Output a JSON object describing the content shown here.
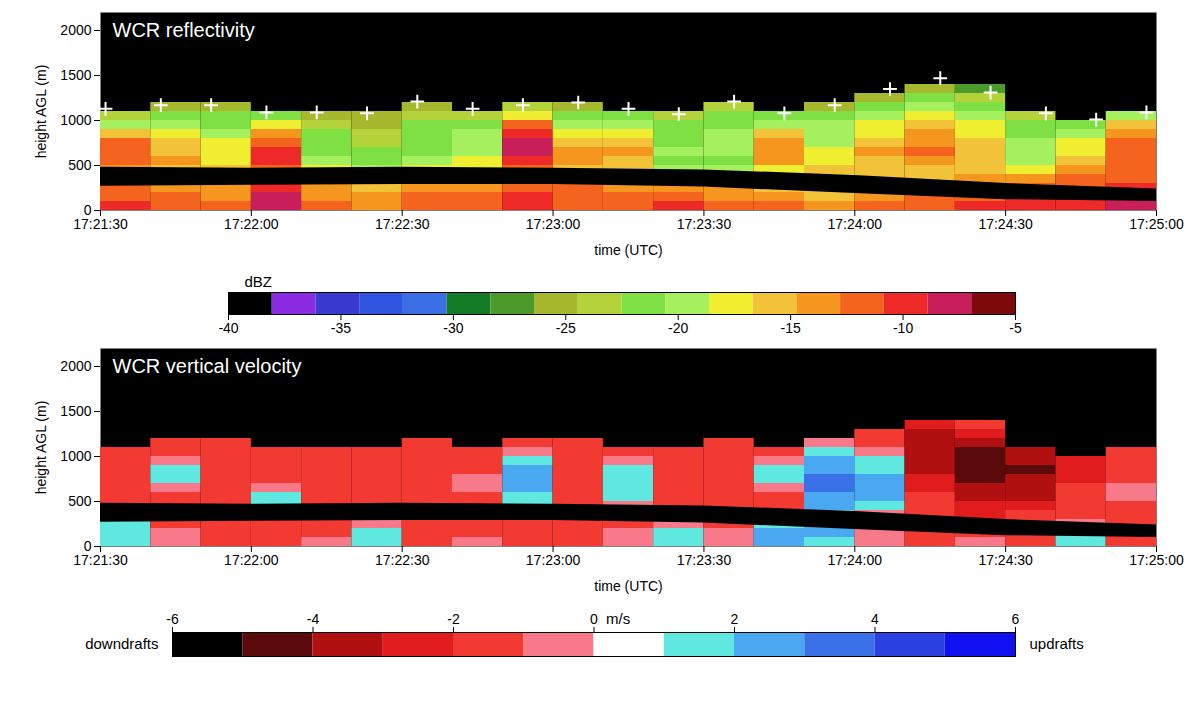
{
  "chart_data": [
    {
      "type": "heatmap",
      "title": "WCR reflectivity",
      "xlabel": "time (UTC)",
      "ylabel": "height AGL (m)",
      "xlim": [
        "17:21:30",
        "17:25:00"
      ],
      "xticks": [
        "17:21:30",
        "17:22:00",
        "17:22:30",
        "17:23:00",
        "17:23:30",
        "17:24:00",
        "17:24:30",
        "17:25:00"
      ],
      "ylim": [
        0,
        2200
      ],
      "yticks": [
        0,
        500,
        1000,
        1500,
        2000
      ],
      "x_bins": [
        "17:21:30",
        "17:21:40",
        "17:21:50",
        "17:22:00",
        "17:22:10",
        "17:22:20",
        "17:22:30",
        "17:22:40",
        "17:22:50",
        "17:23:00",
        "17:23:10",
        "17:23:20",
        "17:23:30",
        "17:23:40",
        "17:23:50",
        "17:24:00",
        "17:24:10",
        "17:24:20",
        "17:24:30",
        "17:24:40",
        "17:24:50",
        "17:25:00"
      ],
      "y_bins": [
        0,
        100,
        200,
        300,
        400,
        500,
        600,
        700,
        800,
        900,
        1000,
        1100,
        1200,
        1300,
        1400
      ],
      "values": [
        [
          -10,
          -11,
          -12,
          -8,
          -12,
          -13,
          -12,
          -11,
          -10,
          -12,
          -11,
          -10,
          -12,
          -11,
          -13,
          -12,
          -11,
          -10,
          -10,
          -9,
          -8
        ],
        [
          -11,
          -12,
          -13,
          -8,
          -13,
          -14,
          -12,
          -12,
          -10,
          -11,
          -12,
          -12,
          -13,
          -14,
          -15,
          -13,
          -12,
          -11,
          -10,
          -10,
          -9
        ],
        [
          -12,
          -13,
          -14,
          -9,
          -14,
          -15,
          -14,
          -13,
          -11,
          -12,
          -13,
          -14,
          -14,
          -15,
          -16,
          -15,
          -14,
          -13,
          -12,
          -11,
          -10
        ],
        [
          -13,
          -14,
          -15,
          -11,
          -16,
          -17,
          -16,
          -15,
          -12,
          -13,
          -15,
          -17,
          -18,
          -17,
          -17,
          -16,
          -15,
          -14,
          -14,
          -12,
          -11
        ],
        [
          -14,
          -15,
          -16,
          -11,
          -18,
          -19,
          -18,
          -17,
          -11,
          -15,
          -16,
          -19,
          -20,
          -18,
          -16,
          -16,
          -15,
          -16,
          -17,
          -14,
          -11
        ],
        [
          -12,
          -14,
          -17,
          -10,
          -20,
          -21,
          -20,
          -18,
          -9,
          -14,
          -15,
          -21,
          -22,
          -14,
          -17,
          -15,
          -13,
          -16,
          -19,
          -16,
          -11
        ],
        [
          -11,
          -15,
          -18,
          -10,
          -21,
          -22,
          -21,
          -19,
          -8,
          -13,
          -14,
          -20,
          -20,
          -13,
          -18,
          -14,
          -12,
          -15,
          -19,
          -17,
          -12
        ],
        [
          -12,
          -16,
          -18,
          -11,
          -22,
          -23,
          -22,
          -19,
          -8,
          -15,
          -15,
          -21,
          -19,
          -14,
          -19,
          -16,
          -13,
          -16,
          -20,
          -18,
          -12
        ],
        [
          -15,
          -18,
          -19,
          -13,
          -22,
          -24,
          -22,
          -20,
          -9,
          -17,
          -17,
          -21,
          -20,
          -16,
          -19,
          -17,
          -14,
          -17,
          -21,
          -19,
          -13
        ],
        [
          -19,
          -20,
          -21,
          -17,
          -23,
          -25,
          -22,
          -21,
          -11,
          -19,
          -19,
          -22,
          -21,
          -19,
          -20,
          -18,
          -16,
          -18,
          -22,
          -21,
          -15
        ],
        [
          -23,
          -22,
          -22,
          -22,
          -25,
          -26,
          -23,
          -23,
          -17,
          -22,
          -22,
          -24,
          -22,
          -22,
          -22,
          -20,
          -18,
          -19,
          -24,
          null,
          -20
        ],
        [
          null,
          -25,
          -25,
          null,
          null,
          null,
          -25,
          null,
          -24,
          -25,
          null,
          null,
          -24,
          null,
          -25,
          -22,
          -20,
          -21,
          null,
          null,
          null
        ],
        [
          null,
          null,
          null,
          null,
          null,
          null,
          null,
          null,
          null,
          null,
          null,
          null,
          null,
          null,
          null,
          -26,
          -22,
          -24,
          null,
          null,
          null
        ],
        [
          null,
          null,
          null,
          null,
          null,
          null,
          null,
          null,
          null,
          null,
          null,
          null,
          null,
          null,
          null,
          null,
          -25,
          -27,
          null,
          null,
          null
        ]
      ],
      "flight_level_band": {
        "x": [
          "17:21:30",
          "17:22:00",
          "17:22:30",
          "17:23:00",
          "17:23:30",
          "17:24:00",
          "17:24:30",
          "17:25:00"
        ],
        "bottom": [
          270,
          280,
          290,
          290,
          260,
          190,
          120,
          100
        ],
        "top": [
          480,
          470,
          480,
          470,
          450,
          390,
          300,
          240
        ]
      },
      "cloud_top": {
        "marker": "plus",
        "color": "#ffffff",
        "x": [
          "17:21:31",
          "17:21:42",
          "17:21:52",
          "17:22:03",
          "17:22:13",
          "17:22:23",
          "17:22:33",
          "17:22:44",
          "17:22:54",
          "17:23:05",
          "17:23:15",
          "17:23:25",
          "17:23:36",
          "17:23:46",
          "17:23:56",
          "17:24:07",
          "17:24:17",
          "17:24:27",
          "17:24:38",
          "17:24:48",
          "17:24:58"
        ],
        "y": [
          1130,
          1170,
          1170,
          1090,
          1090,
          1080,
          1210,
          1130,
          1170,
          1200,
          1130,
          1070,
          1210,
          1080,
          1170,
          1350,
          1470,
          1310,
          1080,
          1010,
          1090
        ]
      },
      "colorbar": {
        "label": "dBZ",
        "range": [
          -40,
          -5
        ],
        "ticks": [
          -40,
          -35,
          -30,
          -25,
          -20,
          -15,
          -10,
          -5
        ],
        "colors": [
          "#000000",
          "#8a2be2",
          "#3a3ad0",
          "#2f55e0",
          "#3c6ee6",
          "#137a26",
          "#4c9a2a",
          "#a6b82e",
          "#b4d23a",
          "#7ee043",
          "#a4f05e",
          "#f0ee30",
          "#f2c238",
          "#f5961e",
          "#f5641e",
          "#ee2a28",
          "#c81e5a",
          "#7d0a0a"
        ]
      }
    },
    {
      "type": "heatmap",
      "title": "WCR vertical velocity",
      "xlabel": "time (UTC)",
      "ylabel": "height AGL (m)",
      "xlim": [
        "17:21:30",
        "17:25:00"
      ],
      "xticks": [
        "17:21:30",
        "17:22:00",
        "17:22:30",
        "17:23:00",
        "17:23:30",
        "17:24:00",
        "17:24:30",
        "17:25:00"
      ],
      "ylim": [
        0,
        2200
      ],
      "yticks": [
        0,
        500,
        1000,
        1500,
        2000
      ],
      "x_bins": [
        "17:21:30",
        "17:21:40",
        "17:21:50",
        "17:22:00",
        "17:22:10",
        "17:22:20",
        "17:22:30",
        "17:22:40",
        "17:22:50",
        "17:23:00",
        "17:23:10",
        "17:23:20",
        "17:23:30",
        "17:23:40",
        "17:23:50",
        "17:24:00",
        "17:24:10",
        "17:24:20",
        "17:24:30",
        "17:24:40",
        "17:24:50",
        "17:25:00"
      ],
      "y_bins": [
        0,
        100,
        200,
        300,
        400,
        500,
        600,
        700,
        800,
        900,
        1000,
        1100,
        1200,
        1300,
        1400
      ],
      "values": [
        [
          1,
          -1,
          -2,
          -2,
          -1,
          1,
          -2,
          -1,
          -2,
          -2,
          -1,
          1,
          -1,
          2,
          1,
          -1,
          -2,
          -1,
          -2,
          1,
          -2
        ],
        [
          1,
          -1,
          -2,
          -2,
          -2,
          1,
          -2,
          -2,
          -2,
          -2,
          -1,
          1,
          -1,
          2,
          2,
          -1,
          -2,
          -2,
          -2,
          1,
          -2
        ],
        [
          1,
          -2,
          -2,
          -2,
          -2,
          -1,
          -2,
          -2,
          -2,
          -2,
          -2,
          -1,
          -2,
          1,
          2,
          -1,
          -2,
          -2,
          -2,
          -1,
          -2
        ],
        [
          -1,
          -2,
          -2,
          -2,
          -2,
          -2,
          -2,
          -2,
          -1,
          -2,
          -2,
          -2,
          -2,
          -1,
          1,
          -1,
          -2,
          -3,
          -2,
          -2,
          -2
        ],
        [
          -2,
          -2,
          -2,
          1,
          -2,
          -2,
          -2,
          -2,
          1,
          -2,
          -1,
          -2,
          -2,
          -2,
          2,
          1,
          -2,
          -3,
          -3,
          -2,
          -2
        ],
        [
          -2,
          -2,
          -2,
          1,
          -2,
          -2,
          -2,
          -2,
          1,
          -2,
          1,
          -2,
          -2,
          -2,
          2,
          2,
          -2,
          -4,
          -4,
          -2,
          -1
        ],
        [
          -2,
          -1,
          -2,
          -1,
          -2,
          -2,
          -2,
          -1,
          2,
          -2,
          1,
          -2,
          -2,
          -1,
          3,
          2,
          -3,
          -4,
          -4,
          -2,
          -1
        ],
        [
          -2,
          1,
          -2,
          -2,
          -2,
          -2,
          -2,
          -1,
          2,
          -2,
          1,
          -2,
          -2,
          1,
          3,
          2,
          -3,
          -5,
          -4,
          -3,
          -2
        ],
        [
          -2,
          1,
          -2,
          -2,
          -2,
          -2,
          -2,
          -2,
          2,
          -2,
          1,
          -2,
          -2,
          1,
          2,
          1,
          -4,
          -5,
          -5,
          -3,
          -2
        ],
        [
          -2,
          -1,
          -2,
          -2,
          -2,
          -2,
          -2,
          -2,
          1,
          -2,
          -1,
          -2,
          -2,
          -1,
          2,
          1,
          -4,
          -5,
          -4,
          -3,
          -2
        ],
        [
          -2,
          -2,
          -2,
          -2,
          -2,
          -2,
          -2,
          -2,
          -1,
          -2,
          -2,
          -2,
          -2,
          -2,
          1,
          -1,
          -4,
          -5,
          -4,
          null,
          -2
        ],
        [
          null,
          -2,
          -2,
          null,
          null,
          null,
          -2,
          null,
          -2,
          -2,
          null,
          null,
          -2,
          null,
          -1,
          -2,
          -4,
          -4,
          null,
          null,
          null
        ],
        [
          null,
          null,
          null,
          null,
          null,
          null,
          null,
          null,
          null,
          null,
          null,
          null,
          null,
          null,
          null,
          -2,
          -4,
          -3,
          null,
          null,
          null
        ],
        [
          null,
          null,
          null,
          null,
          null,
          null,
          null,
          null,
          null,
          null,
          null,
          null,
          null,
          null,
          null,
          null,
          -3,
          -2,
          null,
          null,
          null
        ]
      ],
      "flight_level_band": {
        "x": [
          "17:21:30",
          "17:22:00",
          "17:22:30",
          "17:23:00",
          "17:23:30",
          "17:24:00",
          "17:24:30",
          "17:25:00"
        ],
        "bottom": [
          270,
          280,
          290,
          290,
          260,
          190,
          120,
          100
        ],
        "top": [
          480,
          470,
          480,
          470,
          450,
          390,
          300,
          240
        ]
      },
      "colorbar": {
        "label": "m/s",
        "range": [
          -6,
          6
        ],
        "ticks": [
          -6,
          -4,
          -2,
          0,
          2,
          4,
          6
        ],
        "low_label": "downdrafts",
        "high_label": "updrafts",
        "colors": [
          "#000000",
          "#5a0a0a",
          "#b01010",
          "#e01c1c",
          "#f23a32",
          "#f87a8a",
          "#ffffff",
          "#5ee8e0",
          "#4aa8f0",
          "#3a70e8",
          "#2a40e0",
          "#1010f0"
        ]
      }
    }
  ]
}
